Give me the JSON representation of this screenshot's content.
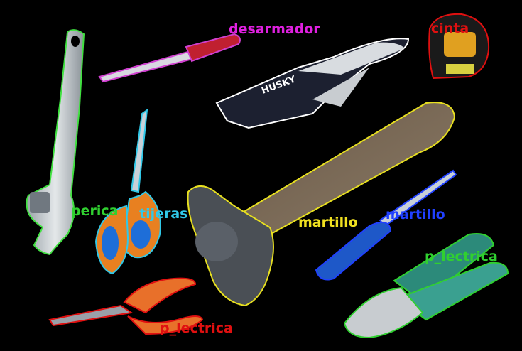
{
  "labels": {
    "desarmador": {
      "text": "desarmador",
      "color": "#e020e0"
    },
    "cinta": {
      "text": "cinta",
      "color": "#e01010"
    },
    "perica": {
      "text": "perica",
      "color": "#30d030"
    },
    "tijeras": {
      "text": "tijeras",
      "color": "#30c8e8"
    },
    "martillo_yellow": {
      "text": "martillo",
      "color": "#f0e020"
    },
    "martillo_blue": {
      "text": "martillo",
      "color": "#2040ff"
    },
    "pinza_right": {
      "text": "p_lectrica",
      "color": "#30d030"
    },
    "pinza_bottom": {
      "text": "p_lectrica",
      "color": "#e01010"
    }
  },
  "objects": [
    "wrench",
    "screwdriver-red",
    "locking-pliers",
    "tape-measure",
    "scissors",
    "hammer",
    "screwdriver-blue",
    "pliers-red",
    "pliers-green"
  ],
  "product_marks": {
    "pliers_brand": "HUSKY"
  }
}
